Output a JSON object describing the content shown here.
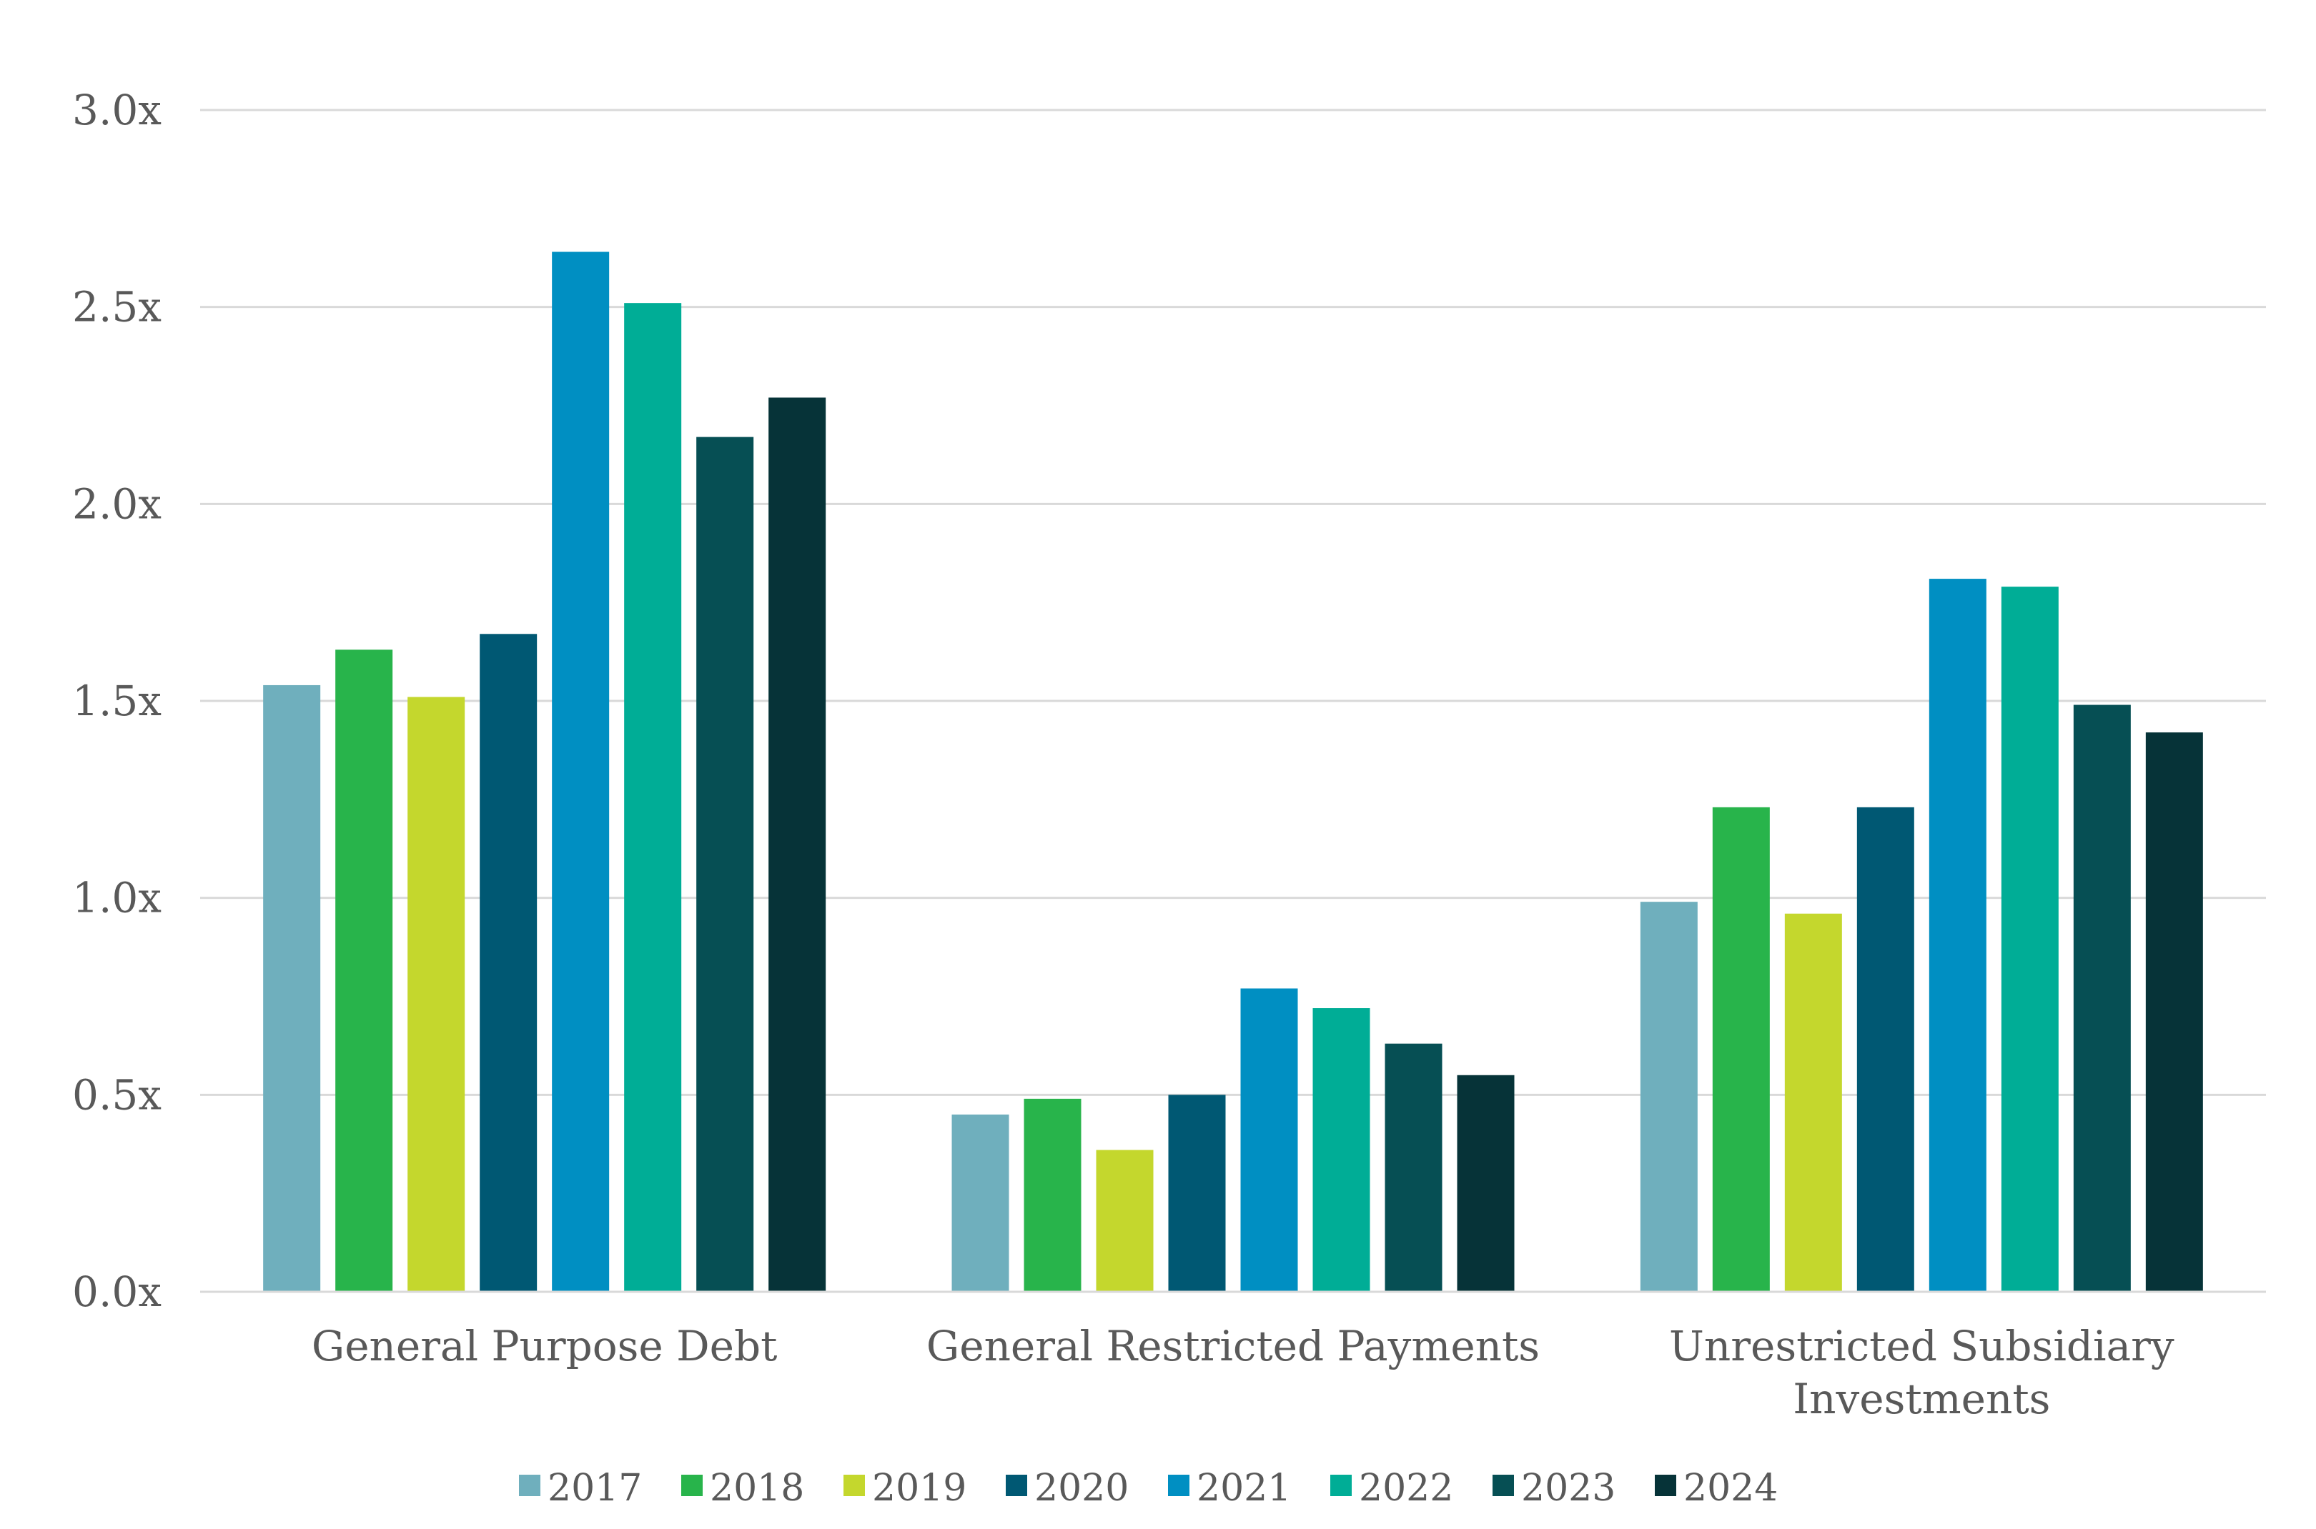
{
  "chart_data": {
    "type": "bar",
    "title": "",
    "xlabel": "",
    "ylabel": "",
    "ylim": [
      0,
      3.0
    ],
    "yticks": [
      "0.0x",
      "0.5x",
      "1.0x",
      "1.5x",
      "2.0x",
      "2.5x",
      "3.0x"
    ],
    "grid": true,
    "legend_position": "bottom",
    "categories": [
      [
        "General Purpose Debt"
      ],
      [
        "General Restricted Payments"
      ],
      [
        "Unrestricted Subsidiary",
        "Investments"
      ]
    ],
    "series": [
      {
        "name": "2017",
        "color": "#6fafbd",
        "values": [
          1.54,
          0.45,
          0.99
        ]
      },
      {
        "name": "2018",
        "color": "#28b44b",
        "values": [
          1.63,
          0.49,
          1.23
        ]
      },
      {
        "name": "2019",
        "color": "#c4d72d",
        "values": [
          1.51,
          0.36,
          0.96
        ]
      },
      {
        "name": "2020",
        "color": "#005873",
        "values": [
          1.67,
          0.5,
          1.23
        ]
      },
      {
        "name": "2021",
        "color": "#008fc2",
        "values": [
          2.64,
          0.77,
          1.81
        ]
      },
      {
        "name": "2022",
        "color": "#00ad96",
        "values": [
          2.51,
          0.72,
          1.79
        ]
      },
      {
        "name": "2023",
        "color": "#064f54",
        "values": [
          2.17,
          0.63,
          1.49
        ]
      },
      {
        "name": "2024",
        "color": "#063338",
        "values": [
          2.27,
          0.55,
          1.42
        ]
      }
    ]
  }
}
